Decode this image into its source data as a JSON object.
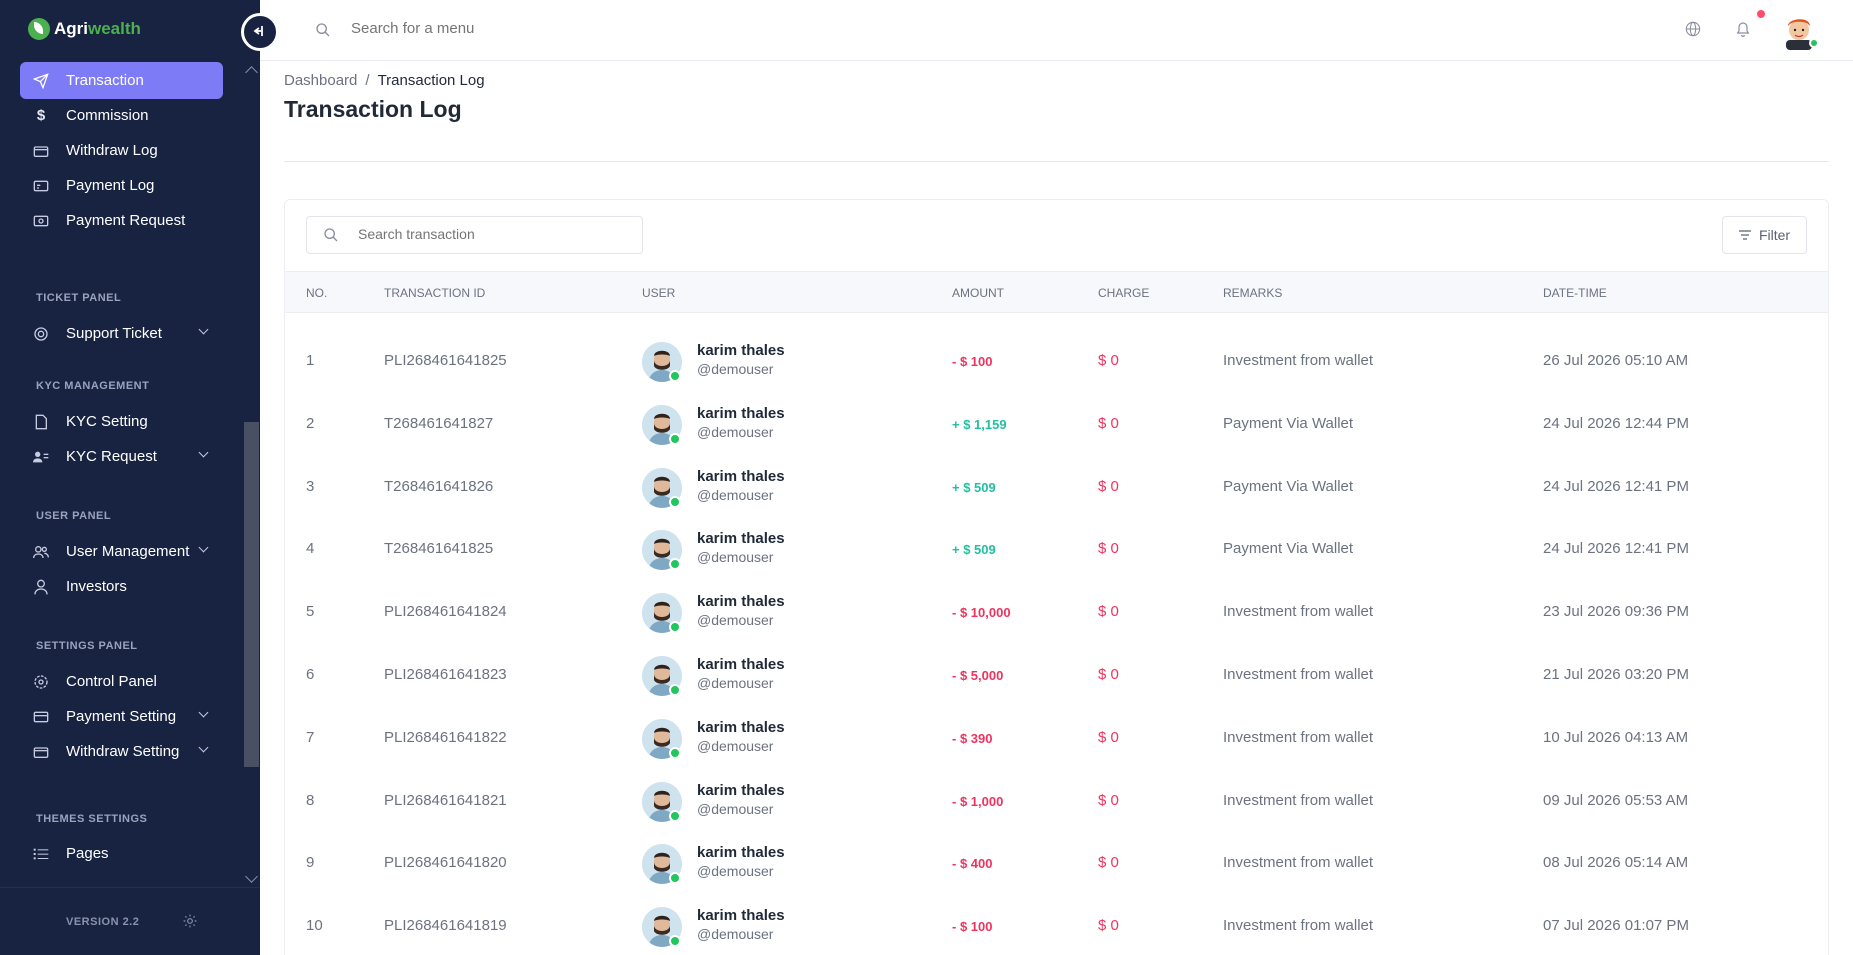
{
  "brand": {
    "name_part1": "Agri",
    "name_part2": "wealth"
  },
  "sidebar": {
    "items": [
      {
        "label": "Transaction",
        "icon": "send-icon",
        "active": true
      },
      {
        "label": "Commission",
        "icon": "dollar-icon"
      },
      {
        "label": "Withdraw Log",
        "icon": "wallet-icon"
      },
      {
        "label": "Payment Log",
        "icon": "card-icon"
      },
      {
        "label": "Payment Request",
        "icon": "cash-icon"
      }
    ],
    "sections": [
      {
        "title": "TICKET PANEL",
        "items": [
          {
            "label": "Support Ticket",
            "icon": "support-icon",
            "has_submenu": true
          }
        ]
      },
      {
        "title": "KYC MANAGEMENT",
        "items": [
          {
            "label": "KYC Setting",
            "icon": "document-icon"
          },
          {
            "label": "KYC Request",
            "icon": "user-list-icon",
            "has_submenu": true
          }
        ]
      },
      {
        "title": "USER PANEL",
        "items": [
          {
            "label": "User Management",
            "icon": "users-icon",
            "has_submenu": true
          },
          {
            "label": "Investors",
            "icon": "user-icon"
          }
        ]
      },
      {
        "title": "SETTINGS PANEL",
        "items": [
          {
            "label": "Control Panel",
            "icon": "gear-icon"
          },
          {
            "label": "Payment Setting",
            "icon": "card-icon",
            "has_submenu": true
          },
          {
            "label": "Withdraw Setting",
            "icon": "wallet-icon",
            "has_submenu": true
          }
        ]
      },
      {
        "title": "THEMES SETTINGS",
        "items": [
          {
            "label": "Pages",
            "icon": "list-icon"
          }
        ]
      }
    ],
    "version": "VERSION 2.2"
  },
  "topbar": {
    "search_placeholder": "Search for a menu"
  },
  "breadcrumb": {
    "home": "Dashboard",
    "separator": "/",
    "current": "Transaction Log"
  },
  "page_title": "Transaction Log",
  "table": {
    "search_placeholder": "Search transaction",
    "filter_label": "Filter",
    "columns": [
      "NO.",
      "TRANSACTION ID",
      "USER",
      "AMOUNT",
      "CHARGE",
      "REMARKS",
      "DATE-TIME"
    ],
    "rows": [
      {
        "no": "1",
        "tid": "PLI268461641825",
        "name": "karim thales",
        "handle": "@demouser",
        "amount": "- $ 100",
        "type": "neg",
        "charge": "$ 0",
        "remarks": "Investment from wallet",
        "datetime": "26 Jul 2026 05:10 AM"
      },
      {
        "no": "2",
        "tid": "T268461641827",
        "name": "karim thales",
        "handle": "@demouser",
        "amount": "+ $ 1,159",
        "type": "pos",
        "charge": "$ 0",
        "remarks": "Payment Via Wallet",
        "datetime": "24 Jul 2026 12:44 PM"
      },
      {
        "no": "3",
        "tid": "T268461641826",
        "name": "karim thales",
        "handle": "@demouser",
        "amount": "+ $ 509",
        "type": "pos",
        "charge": "$ 0",
        "remarks": "Payment Via Wallet",
        "datetime": "24 Jul 2026 12:41 PM"
      },
      {
        "no": "4",
        "tid": "T268461641825",
        "name": "karim thales",
        "handle": "@demouser",
        "amount": "+ $ 509",
        "type": "pos",
        "charge": "$ 0",
        "remarks": "Payment Via Wallet",
        "datetime": "24 Jul 2026 12:41 PM"
      },
      {
        "no": "5",
        "tid": "PLI268461641824",
        "name": "karim thales",
        "handle": "@demouser",
        "amount": "- $ 10,000",
        "type": "neg",
        "charge": "$ 0",
        "remarks": "Investment from wallet",
        "datetime": "23 Jul 2026 09:36 PM"
      },
      {
        "no": "6",
        "tid": "PLI268461641823",
        "name": "karim thales",
        "handle": "@demouser",
        "amount": "- $ 5,000",
        "type": "neg",
        "charge": "$ 0",
        "remarks": "Investment from wallet",
        "datetime": "21 Jul 2026 03:20 PM"
      },
      {
        "no": "7",
        "tid": "PLI268461641822",
        "name": "karim thales",
        "handle": "@demouser",
        "amount": "- $ 390",
        "type": "neg",
        "charge": "$ 0",
        "remarks": "Investment from wallet",
        "datetime": "10 Jul 2026 04:13 AM"
      },
      {
        "no": "8",
        "tid": "PLI268461641821",
        "name": "karim thales",
        "handle": "@demouser",
        "amount": "- $ 1,000",
        "type": "neg",
        "charge": "$ 0",
        "remarks": "Investment from wallet",
        "datetime": "09 Jul 2026 05:53 AM"
      },
      {
        "no": "9",
        "tid": "PLI268461641820",
        "name": "karim thales",
        "handle": "@demouser",
        "amount": "- $ 400",
        "type": "neg",
        "charge": "$ 0",
        "remarks": "Investment from wallet",
        "datetime": "08 Jul 2026 05:14 AM"
      },
      {
        "no": "10",
        "tid": "PLI268461641819",
        "name": "karim thales",
        "handle": "@demouser",
        "amount": "- $ 100",
        "type": "neg",
        "charge": "$ 0",
        "remarks": "Investment from wallet",
        "datetime": "07 Jul 2026 01:07 PM"
      }
    ]
  },
  "colors": {
    "sidebar_bg": "#172341",
    "active_item": "#7e7bf6",
    "negative": "#f0325f",
    "positive": "#22c0a0",
    "online": "#22c55e"
  }
}
